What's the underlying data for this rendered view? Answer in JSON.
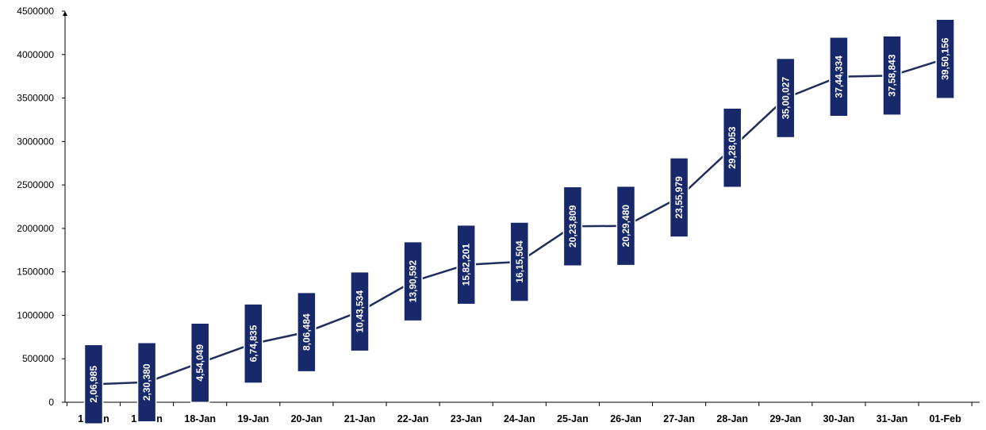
{
  "chart_data": {
    "type": "line",
    "title": "",
    "xlabel": "",
    "ylabel": "",
    "ylim": [
      0,
      4500000
    ],
    "yticks": [
      "4500000",
      "4000000",
      "3500000",
      "3000000",
      "2500000",
      "2000000",
      "1500000",
      "1000000",
      "500000",
      "0"
    ],
    "ytick_values": [
      4500000,
      4000000,
      3500000,
      3000000,
      2500000,
      2000000,
      1500000,
      1000000,
      500000,
      0
    ],
    "grid": false,
    "legend": "none",
    "categories": [
      "16-Jan",
      "17-Jan",
      "18-Jan",
      "19-Jan",
      "20-Jan",
      "21-Jan",
      "22-Jan",
      "23-Jan",
      "24-Jan",
      "25-Jan",
      "26-Jan",
      "27-Jan",
      "28-Jan",
      "29-Jan",
      "30-Jan",
      "31-Jan",
      "01-Feb"
    ],
    "series": [
      {
        "values": [
          206985,
          230380,
          454049,
          674835,
          806484,
          1043534,
          1390592,
          1582201,
          1615504,
          2023809,
          2029480,
          2355979,
          2928053,
          3500027,
          3744334,
          3758843,
          3950156
        ],
        "data_labels": [
          "2,06,985",
          "2,30,380",
          "4,54,049",
          "6,74,835",
          "8,06,484",
          "10,43,534",
          "13,90,592",
          "15,82,201",
          "16,15,504",
          "20,23,809",
          "20,29,480",
          "23,55,979",
          "29,28,053",
          "35,00,027",
          "37,44,334",
          "37,58,843",
          "39,50,156"
        ]
      }
    ],
    "colors": {
      "line": "#1f2d5c",
      "label_bg": "#17296b",
      "label_text": "#ffffff",
      "axis": "#000000"
    }
  }
}
